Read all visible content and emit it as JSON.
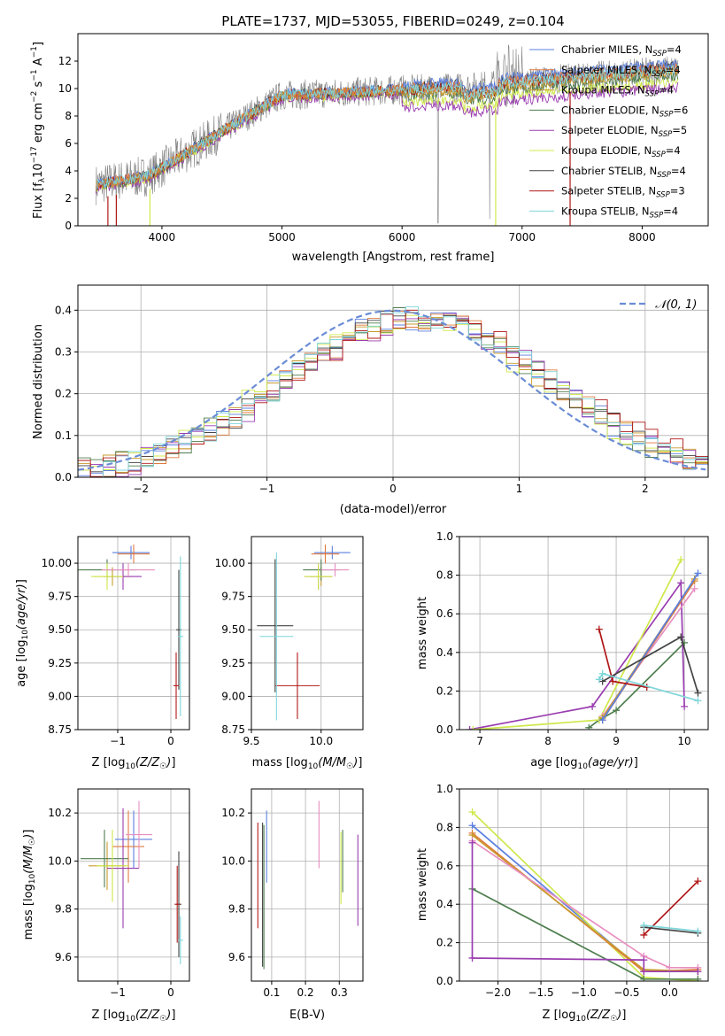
{
  "figure": {
    "title": "PLATE=1737, MJD=53055, FIBERID=0249, z=0.104"
  },
  "colors": {
    "c1": "#5b7fe0",
    "c2": "#e07a3f",
    "c3": "#c89b2e",
    "c4": "#4e7d4e",
    "c5": "#9a3db0",
    "c6": "#cfe84a",
    "c7": "#444444",
    "c8": "#b01818",
    "c9": "#7fd6da",
    "pink": "#e88fc0",
    "data": "#808080",
    "grid": "#b0b0b0",
    "normal": "#6a8cd6"
  },
  "chart_data": [
    {
      "id": "spectrum",
      "type": "line",
      "title": "PLATE=1737, MJD=53055, FIBERID=0249, z=0.104",
      "xlabel": "wavelength [Angstrom, rest frame]",
      "ylabel": "Flux [f_λ 10^-17 erg cm^-2 s^-1 A^-1]",
      "xlim": [
        3300,
        8550
      ],
      "ylim": [
        0,
        14
      ],
      "xticks": [
        4000,
        5000,
        6000,
        7000,
        8000
      ],
      "yticks": [
        0,
        2,
        4,
        6,
        8,
        10,
        12
      ],
      "legend_position": "right",
      "series": [
        {
          "name": "Chabrier MILES, N_SSP=4",
          "color_key": "c1"
        },
        {
          "name": "Salpeter MILES, N_SSP=4",
          "color_key": "c2"
        },
        {
          "name": "Kroupa MILES, N_SSP=4",
          "color_key": "c3"
        },
        {
          "name": "Chabrier ELODIE, N_SSP=6",
          "color_key": "c4"
        },
        {
          "name": "Salpeter ELODIE, N_SSP=5",
          "color_key": "c5"
        },
        {
          "name": "Kroupa ELODIE, N_SSP=4",
          "color_key": "c6"
        },
        {
          "name": "Chabrier STELIB, N_SSP=4",
          "color_key": "c7"
        },
        {
          "name": "Salpeter STELIB, N_SSP=3",
          "color_key": "c8"
        },
        {
          "name": "Kroupa STELIB, N_SSP=4",
          "color_key": "c9"
        }
      ]
    },
    {
      "id": "residuals",
      "type": "line",
      "xlabel": "(data-model)/error",
      "ylabel": "Normed distribution",
      "xlim": [
        -2.5,
        2.5
      ],
      "ylim": [
        0,
        0.46
      ],
      "xticks": [
        -2,
        -1,
        0,
        1,
        2
      ],
      "yticks": [
        0.0,
        0.1,
        0.2,
        0.3,
        0.4
      ],
      "grid": true,
      "legend_position": "top-right",
      "legend": "𝒩(0, 1)"
    },
    {
      "id": "age_vs_Z",
      "type": "scatter",
      "xlabel": "Z [log10(Z/Z☉)]",
      "ylabel": "age  [log10(age/yr)]",
      "xlim": [
        -1.75,
        0.35
      ],
      "ylim": [
        8.75,
        10.2
      ],
      "xticks": [
        -1,
        0
      ],
      "yticks": [
        8.75,
        9.0,
        9.25,
        9.5,
        9.75,
        10.0
      ],
      "grid": true,
      "points": [
        {
          "x": -0.75,
          "y": 10.08,
          "xerr": 0.35,
          "yerr": 0.05,
          "color_key": "c1"
        },
        {
          "x": -0.7,
          "y": 10.07,
          "xerr": 0.3,
          "yerr": 0.07,
          "color_key": "c2"
        },
        {
          "x": -1.1,
          "y": 9.9,
          "xerr": 0.35,
          "yerr": 0.07,
          "color_key": "c3"
        },
        {
          "x": -1.2,
          "y": 9.95,
          "xerr": 0.55,
          "yerr": 0.08,
          "color_key": "c4"
        },
        {
          "x": -0.9,
          "y": 9.9,
          "xerr": 0.35,
          "yerr": 0.1,
          "color_key": "c5"
        },
        {
          "x": -1.2,
          "y": 9.9,
          "xerr": 0.3,
          "yerr": 0.1,
          "color_key": "c6"
        },
        {
          "x": 0.15,
          "y": 9.5,
          "xerr": 0.05,
          "yerr": 0.45,
          "color_key": "c7"
        },
        {
          "x": 0.1,
          "y": 9.08,
          "xerr": 0.05,
          "yerr": 0.25,
          "color_key": "c8"
        },
        {
          "x": 0.18,
          "y": 9.45,
          "xerr": 0.05,
          "yerr": 0.6,
          "color_key": "c9"
        },
        {
          "x": -0.8,
          "y": 9.95,
          "xerr": 0.5,
          "yerr": 0.05,
          "color_key": "pink"
        }
      ]
    },
    {
      "id": "age_vs_mass",
      "type": "scatter",
      "xlabel": "mass [log10(M/M☉)]",
      "xlim": [
        9.5,
        10.3
      ],
      "ylim": [
        8.75,
        10.2
      ],
      "xticks": [
        9.5,
        10.0
      ],
      "yticks": [
        8.75,
        9.0,
        9.25,
        9.5,
        9.75,
        10.0
      ],
      "grid": true,
      "points": [
        {
          "x": 10.08,
          "y": 10.08,
          "xerr": 0.13,
          "yerr": 0.05,
          "color_key": "c1"
        },
        {
          "x": 10.03,
          "y": 10.07,
          "xerr": 0.1,
          "yerr": 0.07,
          "color_key": "c2"
        },
        {
          "x": 10.0,
          "y": 9.9,
          "xerr": 0.08,
          "yerr": 0.07,
          "color_key": "c3"
        },
        {
          "x": 10.0,
          "y": 9.95,
          "xerr": 0.13,
          "yerr": 0.08,
          "color_key": "c4"
        },
        {
          "x": 9.98,
          "y": 9.9,
          "xerr": 0.1,
          "yerr": 0.1,
          "color_key": "c5"
        },
        {
          "x": 9.98,
          "y": 9.9,
          "xerr": 0.1,
          "yerr": 0.1,
          "color_key": "c6"
        },
        {
          "x": 9.67,
          "y": 9.53,
          "xerr": 0.13,
          "yerr": 0.5,
          "color_key": "c7"
        },
        {
          "x": 9.83,
          "y": 9.08,
          "xerr": 0.16,
          "yerr": 0.25,
          "color_key": "c8"
        },
        {
          "x": 9.68,
          "y": 9.45,
          "xerr": 0.12,
          "yerr": 0.63,
          "color_key": "c9"
        },
        {
          "x": 10.1,
          "y": 9.95,
          "xerr": 0.1,
          "yerr": 0.05,
          "color_key": "pink"
        }
      ]
    },
    {
      "id": "weight_vs_age",
      "type": "line",
      "xlabel": "age  [log10(age/yr)]",
      "ylabel": "mass weight",
      "xlim": [
        6.7,
        10.35
      ],
      "ylim": [
        0,
        1.0
      ],
      "xticks": [
        7,
        8,
        9,
        10
      ],
      "yticks": [
        0.0,
        0.2,
        0.4,
        0.6,
        0.8,
        1.0
      ],
      "grid": true,
      "series": [
        {
          "color_key": "c4",
          "x": [
            8.6,
            8.75,
            9.0,
            10.0
          ],
          "y": [
            0.01,
            0.05,
            0.1,
            0.45
          ]
        },
        {
          "color_key": "c5",
          "x": [
            6.85,
            8.65,
            9.95,
            10.0
          ],
          "y": [
            0.0,
            0.12,
            0.76,
            0.12
          ]
        },
        {
          "color_key": "c6",
          "x": [
            6.9,
            8.75,
            9.95
          ],
          "y": [
            0.0,
            0.05,
            0.88
          ]
        },
        {
          "color_key": "pink",
          "x": [
            8.8,
            10.15
          ],
          "y": [
            0.07,
            0.73
          ]
        },
        {
          "color_key": "c2",
          "x": [
            8.8,
            10.15
          ],
          "y": [
            0.05,
            0.77
          ]
        },
        {
          "color_key": "c3",
          "x": [
            8.8,
            10.15
          ],
          "y": [
            0.06,
            0.78
          ]
        },
        {
          "color_key": "c1",
          "x": [
            8.8,
            10.2
          ],
          "y": [
            0.05,
            0.81
          ]
        },
        {
          "color_key": "c7",
          "x": [
            8.8,
            9.95,
            10.2
          ],
          "y": [
            0.25,
            0.48,
            0.19
          ]
        },
        {
          "color_key": "c8",
          "x": [
            8.75,
            8.95,
            9.45
          ],
          "y": [
            0.52,
            0.25,
            0.22
          ]
        },
        {
          "color_key": "c9",
          "x": [
            8.75,
            8.8,
            10.2
          ],
          "y": [
            0.26,
            0.29,
            0.15
          ]
        }
      ]
    },
    {
      "id": "mass_vs_Z",
      "type": "scatter",
      "xlabel": "Z [log10(Z/Z☉)]",
      "ylabel": "mass [log10(M/M☉)]",
      "xlim": [
        -1.75,
        0.35
      ],
      "ylim": [
        9.5,
        10.3
      ],
      "xticks": [
        -1,
        0
      ],
      "yticks": [
        9.6,
        9.8,
        10.0,
        10.2
      ],
      "grid": true,
      "points": [
        {
          "x": -0.7,
          "y": 10.09,
          "xerr": 0.35,
          "yerr": 0.12,
          "color_key": "c1"
        },
        {
          "x": -0.8,
          "y": 10.06,
          "xerr": 0.3,
          "yerr": 0.15,
          "color_key": "c2"
        },
        {
          "x": -1.2,
          "y": 9.98,
          "xerr": 0.35,
          "yerr": 0.1,
          "color_key": "c3"
        },
        {
          "x": -1.25,
          "y": 10.01,
          "xerr": 0.45,
          "yerr": 0.12,
          "color_key": "c4"
        },
        {
          "x": -0.9,
          "y": 9.97,
          "xerr": 0.3,
          "yerr": 0.25,
          "color_key": "c5"
        },
        {
          "x": -1.1,
          "y": 9.98,
          "xerr": 0.3,
          "yerr": 0.15,
          "color_key": "c6"
        },
        {
          "x": 0.15,
          "y": 9.82,
          "xerr": 0.05,
          "yerr": 0.22,
          "color_key": "c7"
        },
        {
          "x": 0.12,
          "y": 9.82,
          "xerr": 0.05,
          "yerr": 0.16,
          "color_key": "c8"
        },
        {
          "x": 0.18,
          "y": 9.67,
          "xerr": 0.05,
          "yerr": 0.1,
          "color_key": "c9"
        },
        {
          "x": -0.6,
          "y": 10.11,
          "xerr": 0.25,
          "yerr": 0.14,
          "color_key": "pink"
        }
      ]
    },
    {
      "id": "mass_vs_ebv",
      "type": "scatter",
      "xlabel": "E(B-V)",
      "xlim": [
        0.04,
        0.37
      ],
      "ylim": [
        9.5,
        10.3
      ],
      "xticks": [
        0.1,
        0.2,
        0.3
      ],
      "yticks": [
        9.6,
        9.8,
        10.0,
        10.2
      ],
      "grid": true,
      "points": [
        {
          "x": 0.059,
          "y": 9.94,
          "yerr": 0.22,
          "color_key": "c8"
        },
        {
          "x": 0.073,
          "y": 9.86,
          "yerr": 0.3,
          "color_key": "c7"
        },
        {
          "x": 0.077,
          "y": 9.85,
          "yerr": 0.3,
          "color_key": "c4"
        },
        {
          "x": 0.085,
          "y": 10.06,
          "yerr": 0.15,
          "color_key": "c1"
        },
        {
          "x": 0.24,
          "y": 10.11,
          "yerr": 0.14,
          "color_key": "pink"
        },
        {
          "x": 0.305,
          "y": 9.97,
          "yerr": 0.15,
          "color_key": "c6"
        },
        {
          "x": 0.31,
          "y": 10.0,
          "yerr": 0.13,
          "color_key": "c4"
        },
        {
          "x": 0.355,
          "y": 9.92,
          "yerr": 0.19,
          "color_key": "c5"
        }
      ]
    },
    {
      "id": "weight_vs_Z",
      "type": "line",
      "xlabel": "Z [log10(Z/Z☉)]",
      "ylabel": "mass weight",
      "xlim": [
        -2.45,
        0.45
      ],
      "ylim": [
        0,
        1.0
      ],
      "xticks": [
        -2.0,
        -1.5,
        -1.0,
        -0.5,
        0.0
      ],
      "yticks": [
        0.0,
        0.2,
        0.4,
        0.6,
        0.8,
        1.0
      ],
      "grid": true,
      "series": [
        {
          "color_key": "c1",
          "x": [
            -2.3,
            -0.3,
            0.33
          ],
          "y": [
            0.81,
            0.05,
            0.05
          ]
        },
        {
          "color_key": "c6",
          "x": [
            -2.3,
            -0.3,
            0.33
          ],
          "y": [
            0.88,
            0.02,
            0.0
          ]
        },
        {
          "color_key": "c2",
          "x": [
            -2.3,
            -0.3,
            0.33
          ],
          "y": [
            0.77,
            0.05,
            0.06
          ]
        },
        {
          "color_key": "c3",
          "x": [
            -2.3,
            -0.3,
            0.33
          ],
          "y": [
            0.76,
            0.06,
            0.05
          ]
        },
        {
          "color_key": "pink",
          "x": [
            -2.3,
            -0.3,
            0.0,
            0.33
          ],
          "y": [
            0.73,
            0.13,
            0.07,
            0.07
          ]
        },
        {
          "color_key": "c4",
          "x": [
            -2.3,
            -0.3,
            0.33
          ],
          "y": [
            0.48,
            0.01,
            0.01
          ]
        },
        {
          "color_key": "c5",
          "x": [
            -2.3,
            -2.3,
            -0.3,
            -0.3,
            0.33
          ],
          "y": [
            0.72,
            0.12,
            0.11,
            0.05,
            0.05
          ]
        },
        {
          "color_key": "c8",
          "x": [
            -0.3,
            0.33
          ],
          "y": [
            0.24,
            0.52
          ]
        },
        {
          "color_key": "c7",
          "x": [
            -0.3,
            0.33
          ],
          "y": [
            0.28,
            0.25
          ]
        },
        {
          "color_key": "c9",
          "x": [
            -0.3,
            0.33
          ],
          "y": [
            0.29,
            0.26
          ]
        }
      ]
    }
  ]
}
